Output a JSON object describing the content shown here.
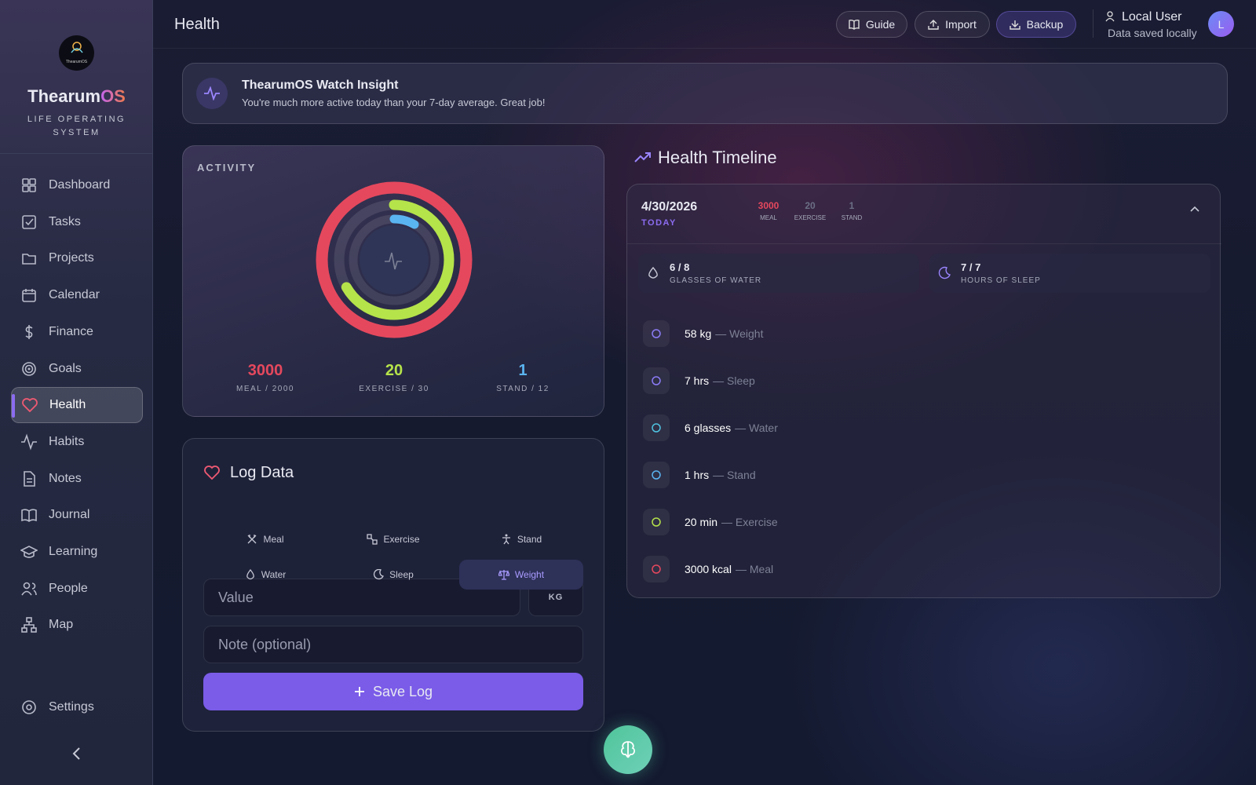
{
  "sidebar": {
    "logo_text": "ThearumOS",
    "brand_a": "Thearum",
    "brand_b": "OS",
    "tagline": "LIFE OPERATING SYSTEM",
    "nav": [
      "Dashboard",
      "Tasks",
      "Projects",
      "Calendar",
      "Finance",
      "Goals",
      "Health",
      "Habits",
      "Notes",
      "Journal",
      "Learning",
      "People",
      "Map"
    ],
    "active": 6,
    "settings": "Settings"
  },
  "header": {
    "title": "Health",
    "buttons": [
      "Guide",
      "Import",
      "Backup"
    ],
    "user": {
      "name": "Local User",
      "status": "Data saved locally",
      "initial": "L"
    }
  },
  "insight": {
    "title": "ThearumOS Watch Insight",
    "text": "You're much more active today than your 7-day average. Great job!"
  },
  "activity": {
    "title": "ACTIVITY",
    "rings": [
      {
        "value": 3000,
        "goal": 2000,
        "caption": "MEAL / 2000",
        "color": "#e5485d"
      },
      {
        "value": 20,
        "goal": 30,
        "caption": "EXERCISE / 30",
        "color": "#b5e34a"
      },
      {
        "value": 1,
        "goal": 12,
        "caption": "STAND / 12",
        "color": "#5ab4f0"
      }
    ]
  },
  "log": {
    "title": "Log Data",
    "tabs": [
      "Meal",
      "Exercise",
      "Stand",
      "Water",
      "Sleep",
      "Weight"
    ],
    "active_tab": 5,
    "value_placeholder": "Value",
    "unit": "KG",
    "note_placeholder": "Note (optional)",
    "save": "Save Log"
  },
  "timeline": {
    "title": "Health Timeline",
    "date": "4/30/2026",
    "day": "TODAY",
    "stats": [
      {
        "value": 3000,
        "label": "MEAL",
        "color": "#e5485d"
      },
      {
        "value": 20,
        "label": "EXERCISE",
        "color": "#6b6f85"
      },
      {
        "value": 1,
        "label": "STAND",
        "color": "#6b6f85"
      }
    ],
    "cards": [
      {
        "value": "6 / 8",
        "label": "GLASSES OF WATER"
      },
      {
        "value": "7 / 7",
        "label": "HOURS OF SLEEP"
      }
    ],
    "entries": [
      {
        "amount": "58 kg",
        "detail": "— Weight",
        "color": "#8b7cf6"
      },
      {
        "amount": "7 hrs",
        "detail": "— Sleep",
        "color": "#8b7cf6"
      },
      {
        "amount": "6 glasses",
        "detail": "— Water",
        "color": "#4fc3e0"
      },
      {
        "amount": "1 hrs",
        "detail": "— Stand",
        "color": "#5ab4f0"
      },
      {
        "amount": "20 min",
        "detail": "— Exercise",
        "color": "#b5e34a"
      },
      {
        "amount": "3000 kcal",
        "detail": "— Meal",
        "color": "#e5485d"
      }
    ]
  }
}
